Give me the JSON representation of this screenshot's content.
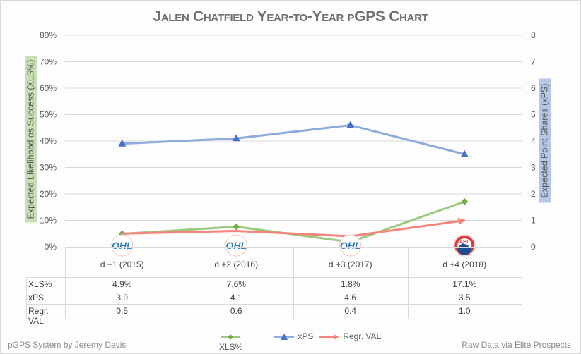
{
  "chart_data": {
    "type": "line",
    "title": "Jalen Chatfield Year-to-Year pGPS Chart",
    "categories": [
      "d +1 (2015)",
      "d +2 (2016)",
      "d +3 (2017)",
      "d +4 (2018)"
    ],
    "category_logos": [
      "OHL",
      "OHL",
      "OHL",
      "AHL"
    ],
    "ylabel": "Expected Likelihood os Success (XLS%)",
    "y2label": "Expected Point Shares (xPS)",
    "ylim": [
      0,
      80
    ],
    "y2lim": [
      0,
      8
    ],
    "yticks": [
      "0%",
      "10%",
      "20%",
      "30%",
      "40%",
      "50%",
      "60%",
      "70%",
      "80%"
    ],
    "y2ticks": [
      "0",
      "1",
      "2",
      "3",
      "4",
      "5",
      "6",
      "7",
      "8"
    ],
    "grid": true,
    "legend_position": "bottom",
    "series": [
      {
        "name": "XLS%",
        "axis": "left",
        "color": "#9bc97f",
        "marker": "diamond",
        "values": [
          4.9,
          7.6,
          1.8,
          17.1
        ],
        "labels": [
          "4.9%",
          "7.6%",
          "1.8%",
          "17.1%"
        ]
      },
      {
        "name": "xPS",
        "axis": "right",
        "color": "#4472c4",
        "line_color": "#8eaadb",
        "marker": "triangle",
        "values": [
          3.9,
          4.1,
          4.6,
          3.5
        ],
        "labels": [
          "3.9",
          "4.1",
          "4.6",
          "3.5"
        ]
      },
      {
        "name": "Regr. VAL",
        "axis": "right",
        "color": "#f4857c",
        "marker": "arrow",
        "values": [
          0.5,
          0.6,
          0.4,
          1.0
        ],
        "labels": [
          "0.5",
          "0.6",
          "0.4",
          "1.0"
        ]
      }
    ]
  },
  "footer": {
    "left": "pGPS System by Jeremy Davis",
    "right": "Raw Data via Elite Prospects"
  }
}
